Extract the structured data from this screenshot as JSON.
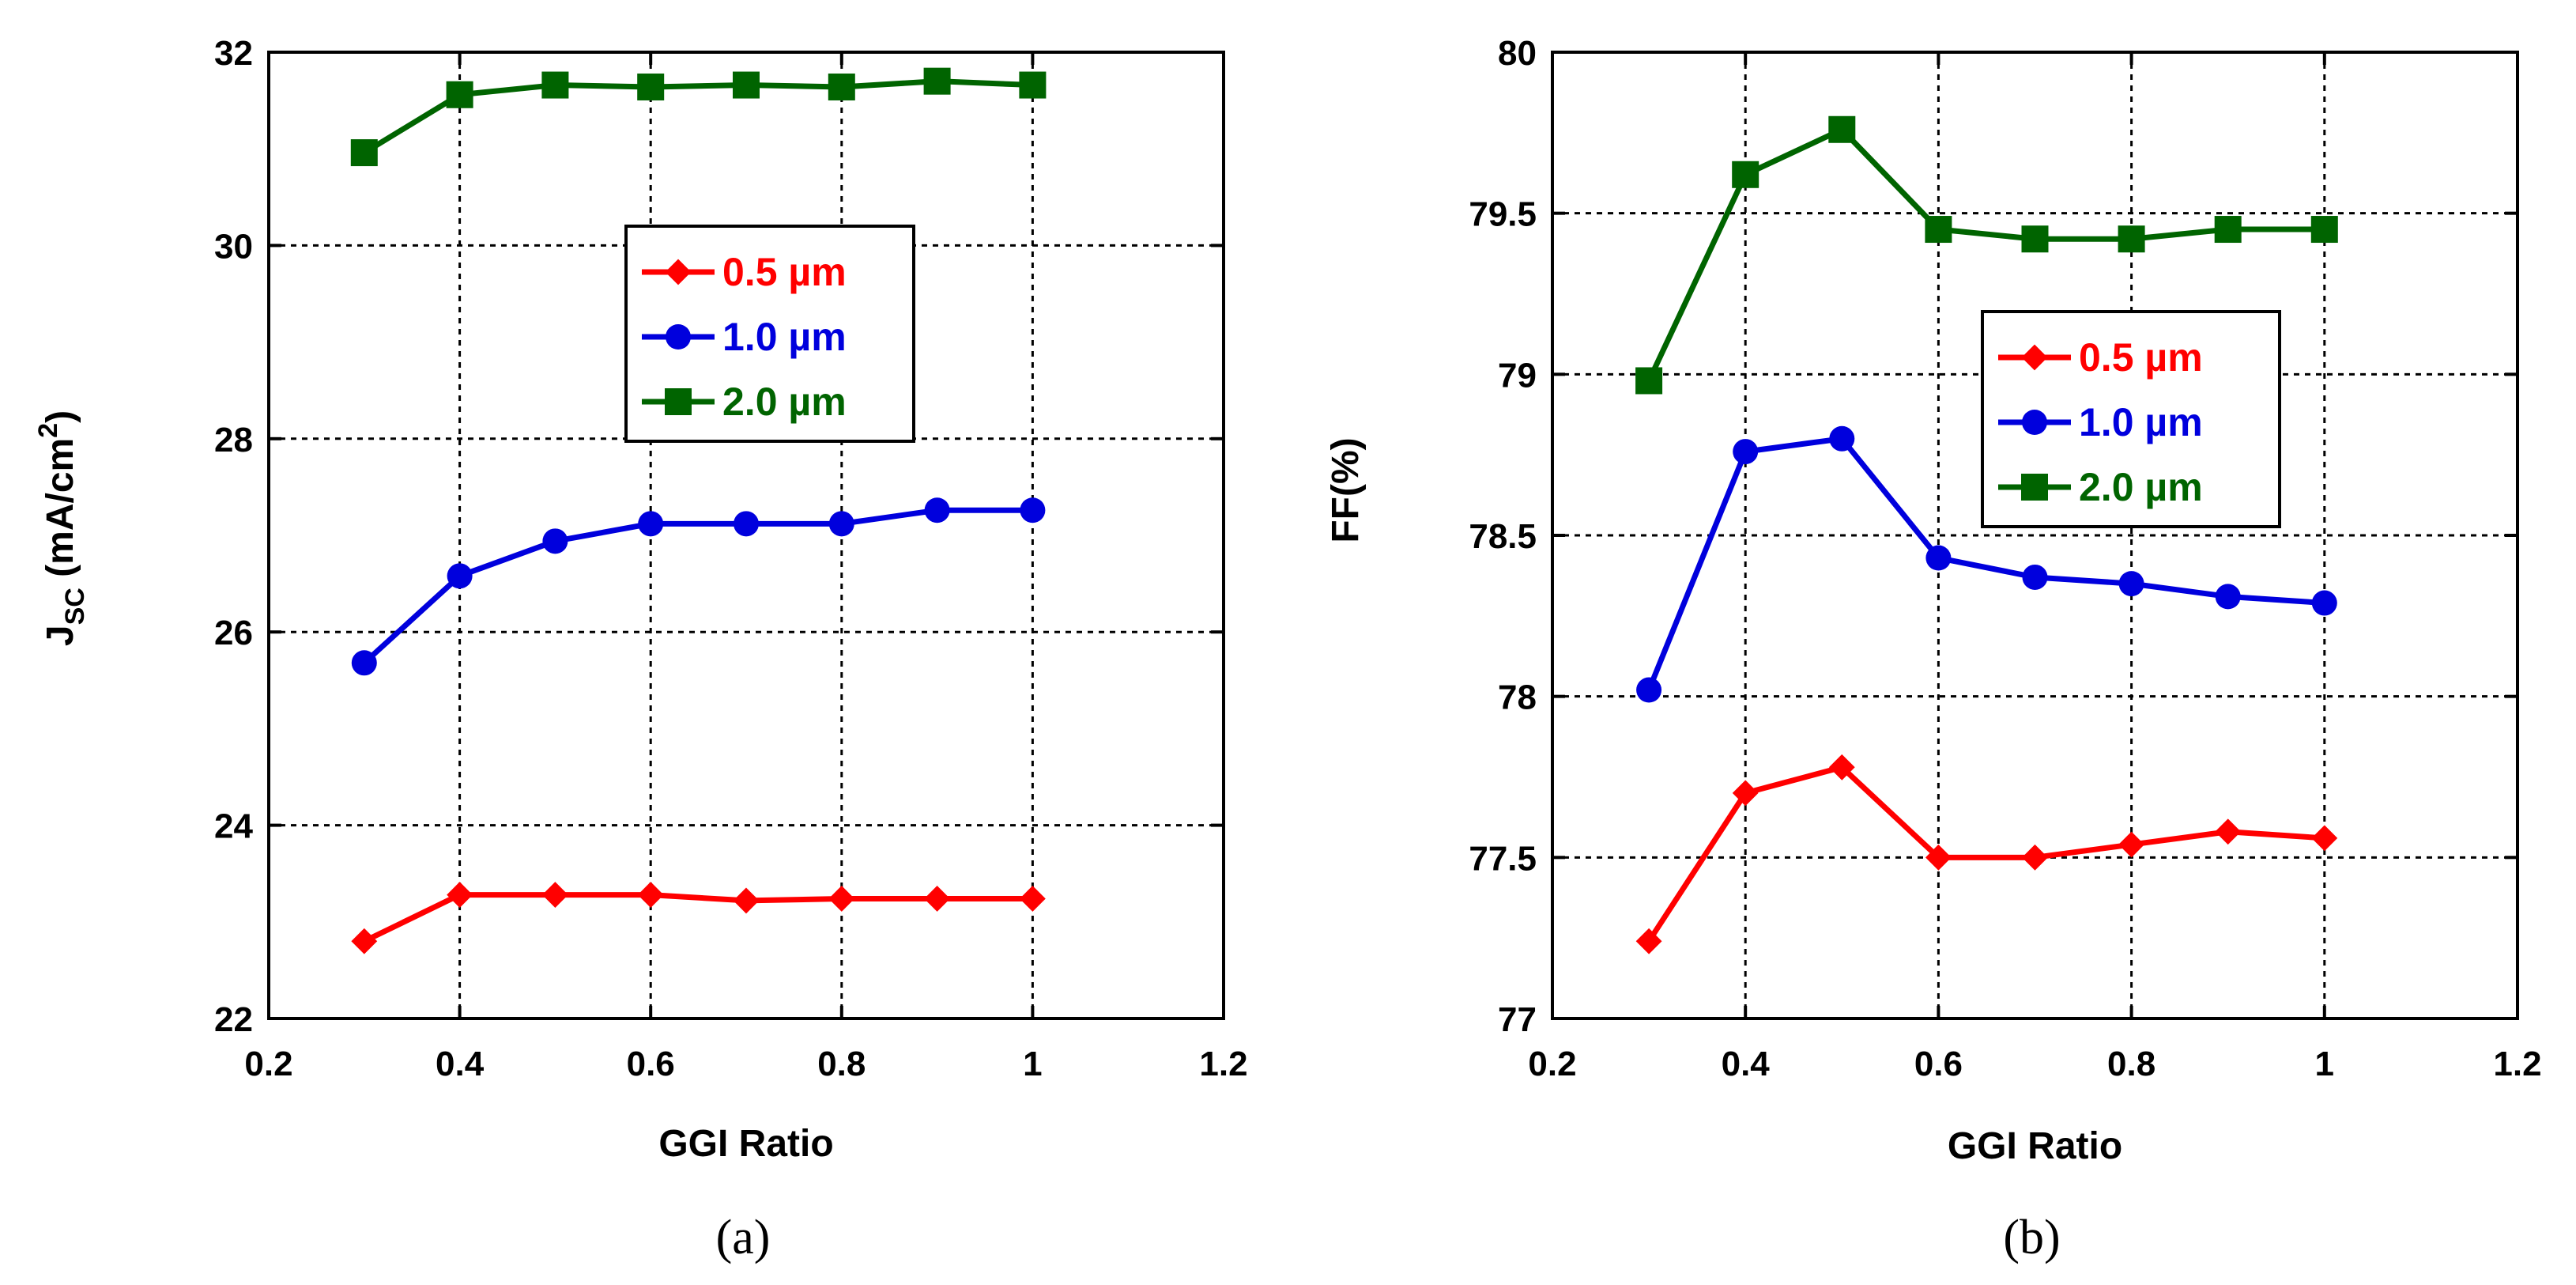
{
  "chart_data": [
    {
      "type": "line",
      "panel_label": "(a)",
      "xlabel": "GGI Ratio",
      "ylabel_main": "J",
      "ylabel_sub": "SC",
      "ylabel_unit_pre": " (mA/cm",
      "ylabel_sup": "2",
      "ylabel_unit_post": ")",
      "xlim": [
        0.2,
        1.2
      ],
      "ylim": [
        22,
        32
      ],
      "xticks": [
        0.2,
        0.4,
        0.6,
        0.8,
        1,
        1.2
      ],
      "xtick_labels": [
        "0.2",
        "0.4",
        "0.6",
        "0.8",
        "1",
        "1.2"
      ],
      "yticks": [
        22,
        24,
        26,
        28,
        30,
        32
      ],
      "ytick_labels": [
        "22",
        "24",
        "26",
        "28",
        "30",
        "32"
      ],
      "grid": true,
      "legend_position": "upper-center",
      "x": [
        0.3,
        0.4,
        0.5,
        0.6,
        0.7,
        0.8,
        0.9,
        1.0
      ],
      "series": [
        {
          "name": "0.5 µm",
          "color": "#ff0000",
          "marker": "diamond",
          "values": [
            22.8,
            23.28,
            23.28,
            23.28,
            23.22,
            23.24,
            23.24,
            23.24
          ]
        },
        {
          "name": "1.0 µm",
          "color": "#0000dd",
          "marker": "circle",
          "values": [
            25.68,
            26.58,
            26.94,
            27.12,
            27.12,
            27.12,
            27.26,
            27.26
          ]
        },
        {
          "name": "2.0 µm",
          "color": "#006400",
          "marker": "square",
          "values": [
            30.96,
            31.56,
            31.66,
            31.64,
            31.66,
            31.64,
            31.7,
            31.66
          ]
        }
      ]
    },
    {
      "type": "line",
      "panel_label": "(b)",
      "xlabel": "GGI Ratio",
      "ylabel_main": "FF(%)",
      "xlim": [
        0.2,
        1.2
      ],
      "ylim": [
        77,
        80
      ],
      "xticks": [
        0.2,
        0.4,
        0.6,
        0.8,
        1,
        1.2
      ],
      "xtick_labels": [
        "0.2",
        "0.4",
        "0.6",
        "0.8",
        "1",
        "1.2"
      ],
      "yticks": [
        77,
        77.5,
        78,
        78.5,
        79,
        79.5,
        80
      ],
      "ytick_labels": [
        "77",
        "77.5",
        "78",
        "78.5",
        "79",
        "79.5",
        "80"
      ],
      "grid": true,
      "legend_position": "center-right",
      "x": [
        0.3,
        0.4,
        0.5,
        0.6,
        0.7,
        0.8,
        0.9,
        1.0
      ],
      "series": [
        {
          "name": "0.5 µm",
          "color": "#ff0000",
          "marker": "diamond",
          "values": [
            77.24,
            77.7,
            77.78,
            77.5,
            77.5,
            77.54,
            77.58,
            77.56
          ]
        },
        {
          "name": "1.0 µm",
          "color": "#0000dd",
          "marker": "circle",
          "values": [
            78.02,
            78.76,
            78.8,
            78.43,
            78.37,
            78.35,
            78.31,
            78.29
          ]
        },
        {
          "name": "2.0 µm",
          "color": "#006400",
          "marker": "square",
          "values": [
            78.98,
            79.62,
            79.76,
            79.45,
            79.42,
            79.42,
            79.45,
            79.45
          ]
        }
      ]
    }
  ]
}
